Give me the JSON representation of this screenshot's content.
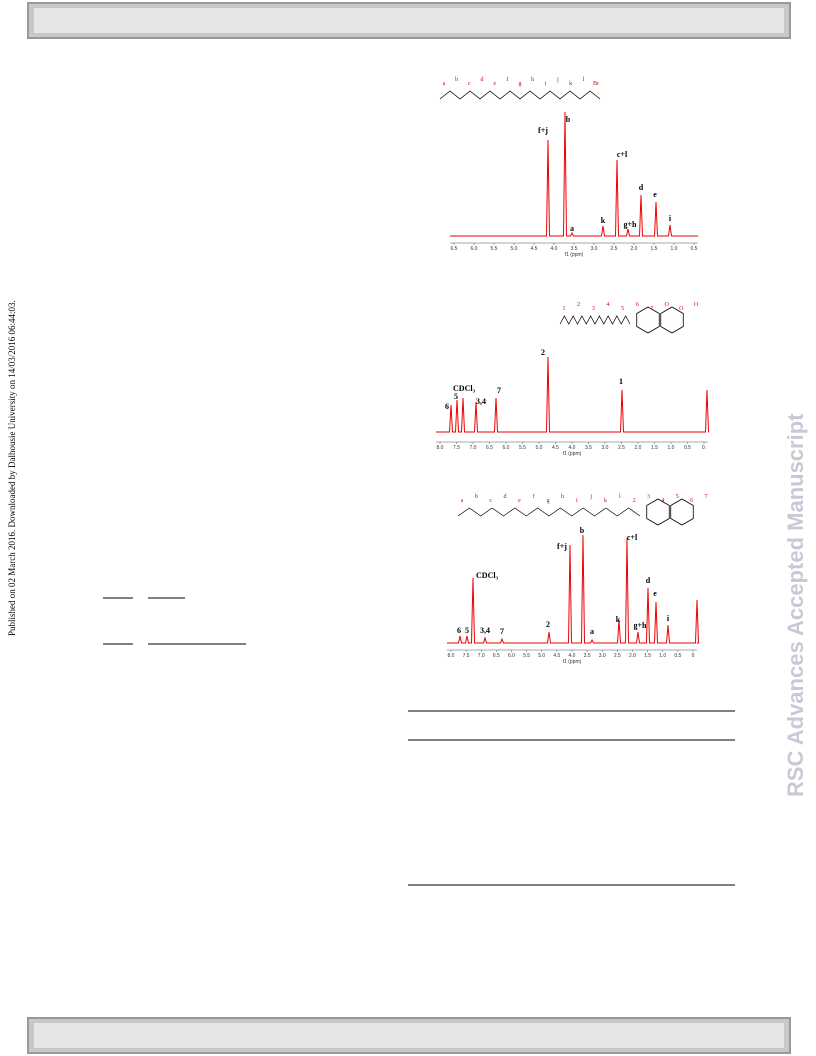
{
  "side_note": "Published on 02 March 2016. Downloaded by Dalhousie University on 14/03/2016 06:44:03.",
  "watermark": "RSC Advances Accepted Manuscript",
  "figures": [
    {
      "axis_label": "f1 (ppm)",
      "ticks": [
        "6.5",
        "6.0",
        "5.5",
        "5.0",
        "4.5",
        "4.0",
        "3.5",
        "3.0",
        "2.5",
        "2.0",
        "1.5",
        "1.0",
        "0.5"
      ],
      "peak_labels": [
        "f+j",
        "b",
        "a",
        "k",
        "c+l",
        "g+h",
        "d",
        "e",
        "i"
      ],
      "structure_labels": [
        "a",
        "b",
        "c",
        "d",
        "e",
        "f",
        "g",
        "h",
        "i",
        "j",
        "k",
        "l",
        "Br"
      ]
    },
    {
      "axis_label": "f1 (ppm)",
      "ticks": [
        "8.0",
        "7.5",
        "7.0",
        "6.5",
        "6.0",
        "5.5",
        "5.0",
        "4.5",
        "4.0",
        "3.5",
        "3.0",
        "2.5",
        "2.0",
        "1.5",
        "1.0",
        "0.5",
        "0."
      ],
      "peak_labels": [
        "6",
        "5",
        "CDCl₃",
        "3,4",
        "7",
        "2",
        "1"
      ],
      "structure_labels": [
        "1",
        "2",
        "3",
        "4",
        "5",
        "6",
        "7",
        "O",
        "O",
        "O"
      ]
    },
    {
      "axis_label": "f1 (ppm)",
      "ticks": [
        "8.0",
        "7.5",
        "7.0",
        "6.5",
        "6.0",
        "5.5",
        "5.0",
        "4.5",
        "4.0",
        "3.5",
        "3.0",
        "2.5",
        "2.0",
        "1.5",
        "1.0",
        "0.5",
        "0"
      ],
      "peak_labels": [
        "6",
        "5",
        "CDCl₃",
        "3,4",
        "7",
        "2",
        "f+j",
        "b",
        "a",
        "k",
        "c+l",
        "g+h",
        "d",
        "e",
        "i"
      ],
      "structure_labels": [
        "a",
        "b",
        "c",
        "d",
        "e",
        "f",
        "g",
        "h",
        "i",
        "j",
        "k",
        "l",
        "2",
        "3",
        "4",
        "5",
        "6",
        "7"
      ]
    }
  ]
}
